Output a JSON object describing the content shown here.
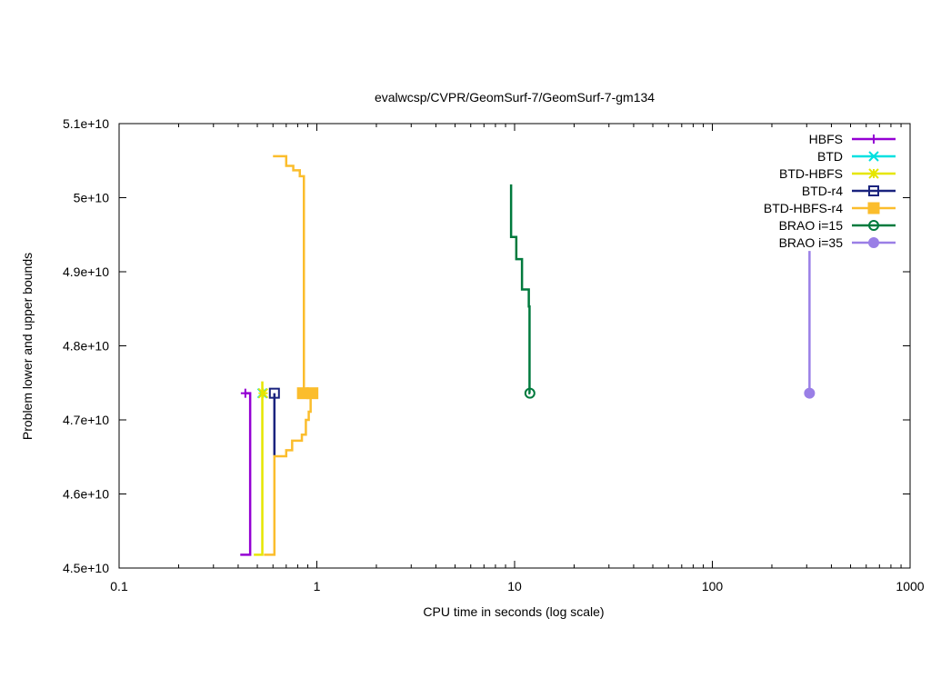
{
  "chart_data": {
    "type": "line",
    "title": "evalwcsp/CVPR/GeomSurf-7/GeomSurf-7-gm134",
    "xlabel": "CPU time in seconds (log scale)",
    "ylabel": "Problem lower and upper bounds",
    "x_scale": "log",
    "xlim": [
      0.1,
      1000
    ],
    "ylim": [
      45000000000,
      51000000000
    ],
    "x_ticks": [
      {
        "value": 0.1,
        "label": "0.1"
      },
      {
        "value": 1,
        "label": "1"
      },
      {
        "value": 10,
        "label": "10"
      },
      {
        "value": 100,
        "label": "100"
      },
      {
        "value": 1000,
        "label": "1000"
      }
    ],
    "y_ticks": [
      {
        "value": 45000000000,
        "label": "4.5e+10"
      },
      {
        "value": 46000000000,
        "label": "4.6e+10"
      },
      {
        "value": 47000000000,
        "label": "4.7e+10"
      },
      {
        "value": 48000000000,
        "label": "4.8e+10"
      },
      {
        "value": 49000000000,
        "label": "4.9e+10"
      },
      {
        "value": 50000000000,
        "label": "5e+10"
      },
      {
        "value": 51000000000,
        "label": "5.1e+10"
      }
    ],
    "grid": false,
    "legend_position": "top-right",
    "series": [
      {
        "name": "HBFS",
        "color": "#9400d3",
        "marker": "plus",
        "segments": [
          [
            [
              0.41,
              45180000000
            ],
            [
              0.46,
              45180000000
            ],
            [
              0.46,
              47360000000
            ],
            [
              0.43,
              47360000000
            ]
          ]
        ],
        "markers": [
          [
            0.435,
            47360000000
          ]
        ]
      },
      {
        "name": "BTD",
        "color": "#00e0e0",
        "marker": "cross",
        "segments": [],
        "markers": [
          [
            0.53,
            47360000000
          ]
        ]
      },
      {
        "name": "BTD-HBFS",
        "color": "#e6e600",
        "marker": "star",
        "segments": [
          [
            [
              0.48,
              45180000000
            ],
            [
              0.53,
              45180000000
            ],
            [
              0.53,
              47520000000
            ]
          ]
        ],
        "markers": [
          [
            0.535,
            47360000000
          ]
        ]
      },
      {
        "name": "BTD-r4",
        "color": "#1a237e",
        "marker": "open-square",
        "segments": [
          [
            [
              0.61,
              46520000000
            ],
            [
              0.61,
              47360000000
            ]
          ]
        ],
        "markers": [
          [
            0.61,
            47360000000
          ]
        ]
      },
      {
        "name": "BTD-HBFS-r4",
        "color": "#fbbd2c",
        "marker": "filled-square",
        "segments": [
          [
            [
              0.54,
              45180000000
            ],
            [
              0.61,
              45180000000
            ],
            [
              0.61,
              46510000000
            ],
            [
              0.7,
              46510000000
            ],
            [
              0.7,
              46590000000
            ],
            [
              0.75,
              46590000000
            ],
            [
              0.75,
              46720000000
            ],
            [
              0.84,
              46720000000
            ],
            [
              0.84,
              46800000000
            ],
            [
              0.88,
              46800000000
            ],
            [
              0.88,
              47000000000
            ],
            [
              0.91,
              47000000000
            ],
            [
              0.91,
              47110000000
            ],
            [
              0.93,
              47110000000
            ],
            [
              0.93,
              47360000000
            ],
            [
              0.97,
              47360000000
            ]
          ],
          [
            [
              0.86,
              47360000000
            ],
            [
              0.86,
              50290000000
            ],
            [
              0.82,
              50290000000
            ],
            [
              0.82,
              50370000000
            ],
            [
              0.76,
              50370000000
            ],
            [
              0.76,
              50430000000
            ],
            [
              0.7,
              50430000000
            ],
            [
              0.7,
              50560000000
            ],
            [
              0.6,
              50560000000
            ]
          ]
        ],
        "markers": [
          [
            0.85,
            47360000000
          ],
          [
            0.95,
            47360000000
          ]
        ]
      },
      {
        "name": "BRAO i=15",
        "color": "#007a3d",
        "marker": "open-circle",
        "segments": [
          [
            [
              9.6,
              50180000000
            ],
            [
              9.6,
              49470000000
            ],
            [
              10.2,
              49470000000
            ],
            [
              10.2,
              49170000000
            ],
            [
              10.9,
              49170000000
            ],
            [
              10.9,
              48760000000
            ],
            [
              11.8,
              48760000000
            ],
            [
              11.8,
              48530000000
            ],
            [
              11.9,
              48530000000
            ],
            [
              11.9,
              47360000000
            ],
            [
              12.0,
              47360000000
            ]
          ]
        ],
        "markers": [
          [
            11.95,
            47360000000
          ]
        ]
      },
      {
        "name": "BRAO i=35",
        "color": "#9a7fe6",
        "marker": "filled-circle",
        "segments": [
          [
            [
              310,
              49280000000
            ],
            [
              310,
              47360000000
            ]
          ]
        ],
        "markers": [
          [
            310,
            47360000000
          ]
        ]
      }
    ]
  }
}
